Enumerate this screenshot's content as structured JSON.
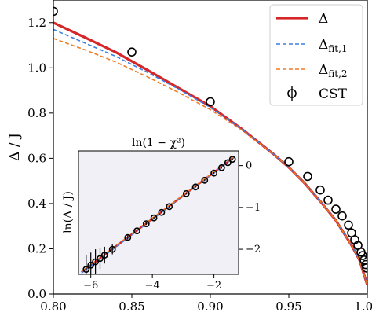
{
  "chart_data": [
    {
      "type": "line",
      "ylabel": "Δ / J",
      "xlabel": "",
      "xlim": [
        0.8,
        1.0
      ],
      "ylim": [
        0.0,
        1.3
      ],
      "x_ticks": [
        "0.80",
        "0.85",
        "0.90",
        "0.95",
        "1.00"
      ],
      "y_ticks": [
        "0.0",
        "0.2",
        "0.4",
        "0.6",
        "0.8",
        "1.0",
        "1.2"
      ],
      "grid": false,
      "legend_position": "top-right",
      "legend": {
        "delta": "Δ",
        "fit1": "Δfit,1",
        "fit2": "Δfit,2",
        "cst": "CST"
      },
      "series": [
        {
          "name": "Δ",
          "color": "#d62728",
          "style": "solid",
          "x": [
            0.8,
            0.82,
            0.84,
            0.86,
            0.88,
            0.9,
            0.92,
            0.94,
            0.95,
            0.96,
            0.97,
            0.98,
            0.99,
            0.995,
            1.0
          ],
          "y": [
            1.2,
            1.135,
            1.068,
            0.99,
            0.91,
            0.83,
            0.73,
            0.62,
            0.56,
            0.49,
            0.41,
            0.325,
            0.215,
            0.15,
            0.04
          ]
        },
        {
          "name": "Δfit,1",
          "color": "#3b7fe0",
          "style": "dashed",
          "x": [
            0.8,
            0.82,
            0.84,
            0.86,
            0.88,
            0.9,
            0.92,
            0.94,
            0.95,
            0.96,
            0.97,
            0.98,
            0.99,
            0.995,
            1.0
          ],
          "y": [
            1.17,
            1.11,
            1.05,
            0.98,
            0.905,
            0.825,
            0.73,
            0.62,
            0.56,
            0.49,
            0.41,
            0.325,
            0.215,
            0.15,
            0.04
          ]
        },
        {
          "name": "Δfit,2",
          "color": "#f07a20",
          "style": "dashed",
          "x": [
            0.8,
            0.82,
            0.84,
            0.86,
            0.88,
            0.9,
            0.92,
            0.94,
            0.95,
            0.96,
            0.97,
            0.98,
            0.99,
            0.995,
            1.0
          ],
          "y": [
            1.13,
            1.08,
            1.025,
            0.96,
            0.89,
            0.815,
            0.725,
            0.62,
            0.56,
            0.49,
            0.41,
            0.325,
            0.215,
            0.15,
            0.04
          ]
        }
      ],
      "points": {
        "name": "CST",
        "x": [
          0.8,
          0.85,
          0.9,
          0.95,
          0.962,
          0.97,
          0.975,
          0.98,
          0.984,
          0.988,
          0.99,
          0.992,
          0.994,
          0.996,
          0.997,
          0.998,
          0.999,
          0.9995
        ],
        "y": [
          1.25,
          1.07,
          0.85,
          0.585,
          0.52,
          0.46,
          0.415,
          0.375,
          0.345,
          0.305,
          0.27,
          0.24,
          0.215,
          0.185,
          0.17,
          0.15,
          0.13,
          0.115
        ]
      }
    },
    {
      "type": "line",
      "title": "ln(1 − χ²)",
      "ylabel": "ln(Δ / J)",
      "xlabel": "",
      "xlim": [
        -6.4,
        -1.2
      ],
      "ylim": [
        -2.6,
        0.35
      ],
      "x_ticks": [
        "−6",
        "−4",
        "−2"
      ],
      "y_ticks": [
        "0",
        "−1",
        "−2"
      ],
      "grid": false,
      "series": [
        {
          "name": "Δ",
          "color": "#d62728",
          "style": "solid",
          "x": [
            -6.3,
            -1.35
          ],
          "y": [
            -2.55,
            0.2
          ]
        },
        {
          "name": "Δfit,1",
          "color": "#3b7fe0",
          "style": "dashed",
          "x": [
            -6.3,
            -1.35
          ],
          "y": [
            -2.57,
            0.19
          ]
        },
        {
          "name": "Δfit,2",
          "color": "#f07a20",
          "style": "dashed",
          "x": [
            -6.3,
            -1.35
          ],
          "y": [
            -2.53,
            0.21
          ]
        }
      ],
      "points": {
        "name": "CST",
        "x": [
          -6.15,
          -6.0,
          -5.85,
          -5.7,
          -5.55,
          -5.3,
          -4.8,
          -4.5,
          -4.2,
          -3.95,
          -3.7,
          -3.45,
          -2.9,
          -2.6,
          -2.3,
          -2.0,
          -1.75,
          -1.55,
          -1.4
        ],
        "y": [
          -2.48,
          -2.38,
          -2.3,
          -2.22,
          -2.14,
          -2.0,
          -1.72,
          -1.56,
          -1.39,
          -1.25,
          -1.12,
          -0.98,
          -0.67,
          -0.51,
          -0.35,
          -0.18,
          -0.05,
          0.07,
          0.15
        ],
        "err": [
          0.35,
          0.3,
          0.3,
          0.25,
          0.2,
          0.12,
          0.05,
          0.03,
          0.03,
          0.02,
          0.02,
          0.02,
          0.02,
          0.02,
          0.02,
          0.02,
          0.02,
          0.02,
          0.02
        ]
      }
    }
  ]
}
